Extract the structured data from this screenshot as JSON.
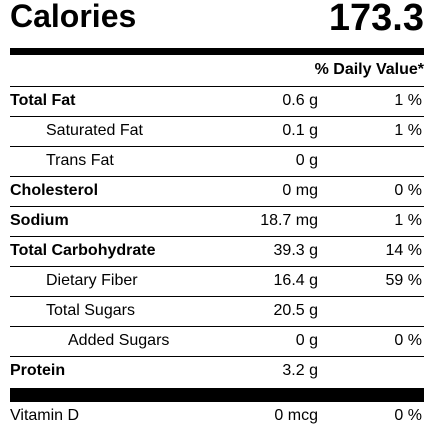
{
  "calories": {
    "label": "Calories",
    "value": "173.3"
  },
  "daily_value_header": "% Daily Value*",
  "nutrients": [
    {
      "name": "Total Fat",
      "amount": "0.6 g",
      "dv": "1 %"
    },
    {
      "name": "Saturated Fat",
      "amount": "0.1 g",
      "dv": "1 %"
    },
    {
      "name": "Trans Fat",
      "amount": "0 g",
      "dv": ""
    },
    {
      "name": "Cholesterol",
      "amount": "0 mg",
      "dv": "0 %"
    },
    {
      "name": "Sodium",
      "amount": "18.7 mg",
      "dv": "1 %"
    },
    {
      "name": "Total Carbohydrate",
      "amount": "39.3 g",
      "dv": "14 %"
    },
    {
      "name": "Dietary Fiber",
      "amount": "16.4 g",
      "dv": "59 %"
    },
    {
      "name": "Total Sugars",
      "amount": "20.5 g",
      "dv": ""
    },
    {
      "name": "Added Sugars",
      "amount": "0 g",
      "dv": "0 %"
    },
    {
      "name": "Protein",
      "amount": "3.2 g",
      "dv": ""
    }
  ],
  "vitamins": [
    {
      "name": "Vitamin D",
      "amount": "0 mcg",
      "dv": "0 %"
    }
  ]
}
